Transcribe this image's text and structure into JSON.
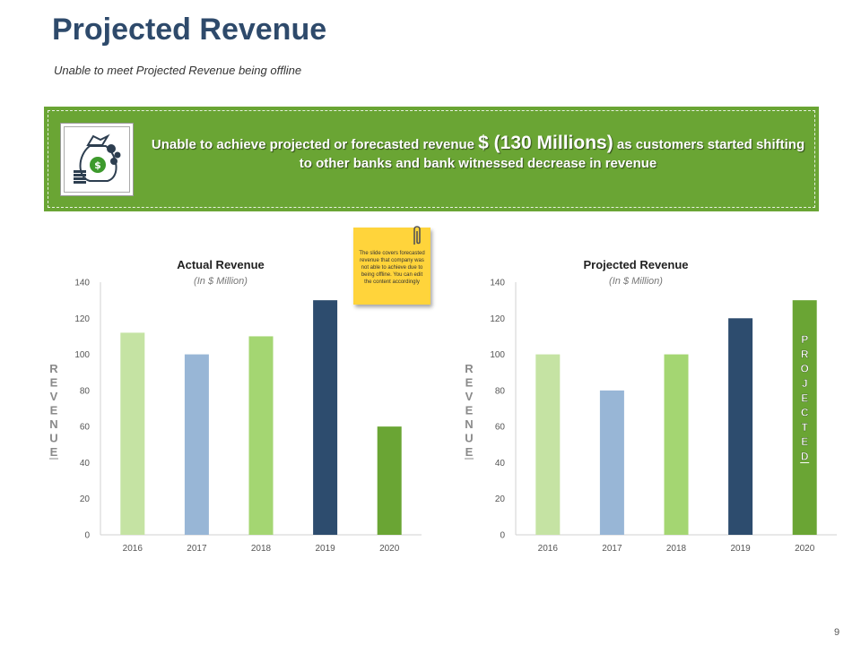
{
  "header": {
    "title": "Projected Revenue",
    "subtitle": "Unable to meet Projected Revenue being offline"
  },
  "banner": {
    "icon": "money-bag-icon",
    "text_before": "Unable to achieve projected or forecasted revenue ",
    "text_highlight": "$ (130 Millions)",
    "text_after": " as customers started shifting to other banks and bank witnessed decrease in revenue",
    "color": "#6aa534"
  },
  "sticky_note": {
    "text": "The slide covers forecasted revenue that company was not able to achieve due to being offline. You can edit the content accordingly",
    "color": "#ffd43b",
    "icon": "paperclip-icon"
  },
  "chart_data": [
    {
      "type": "bar",
      "title": "Actual Revenue",
      "subtitle": "(In $ Million)",
      "ylabel": "REVENUE",
      "categories": [
        "2016",
        "2017",
        "2018",
        "2019",
        "2020"
      ],
      "values": [
        112,
        100,
        110,
        130,
        60
      ],
      "colors": [
        "#c5e3a3",
        "#98b6d6",
        "#a4d672",
        "#2d4c6e",
        "#6aa534"
      ],
      "ylim": [
        0,
        140
      ],
      "yticks": [
        0,
        20,
        40,
        60,
        80,
        100,
        120,
        140
      ],
      "grid": false,
      "bar_label": ""
    },
    {
      "type": "bar",
      "title": "Projected Revenue",
      "subtitle": "(In $ Million)",
      "ylabel": "REVENUE",
      "categories": [
        "2016",
        "2017",
        "2018",
        "2019",
        "2020"
      ],
      "values": [
        100,
        80,
        100,
        120,
        130
      ],
      "colors": [
        "#c5e3a3",
        "#98b6d6",
        "#a4d672",
        "#2d4c6e",
        "#6aa534"
      ],
      "ylim": [
        0,
        140
      ],
      "yticks": [
        0,
        20,
        40,
        60,
        80,
        100,
        120,
        140
      ],
      "grid": false,
      "bar_label": "PROJECTED"
    }
  ],
  "footer": {
    "page_number": "9"
  }
}
